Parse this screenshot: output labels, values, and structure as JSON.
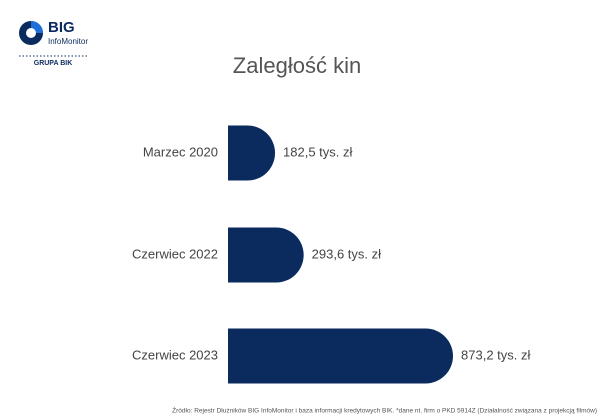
{
  "logo": {
    "name": "BIG",
    "subname": "InfoMonitor",
    "group": "GRUPA BIK"
  },
  "chart_data": {
    "type": "bar",
    "orientation": "horizontal",
    "title": "Zaległość kin",
    "categories": [
      "Marzec 2020",
      "Czerwiec 2022",
      "Czerwiec 2023"
    ],
    "values": [
      182.5,
      293.6,
      873.2
    ],
    "value_labels": [
      "182,5 tys. zł",
      "293,6 tys. zł",
      "873,2 tys. zł"
    ],
    "color": "#0b2a5e"
  },
  "footer": "Źródło: Rejestr Dłużników BIG InfoMonitor i baza informacji kredytowych BIK. *dane nt. firm o PKD 5914Z (Działalność związana z projekcją filmów)"
}
